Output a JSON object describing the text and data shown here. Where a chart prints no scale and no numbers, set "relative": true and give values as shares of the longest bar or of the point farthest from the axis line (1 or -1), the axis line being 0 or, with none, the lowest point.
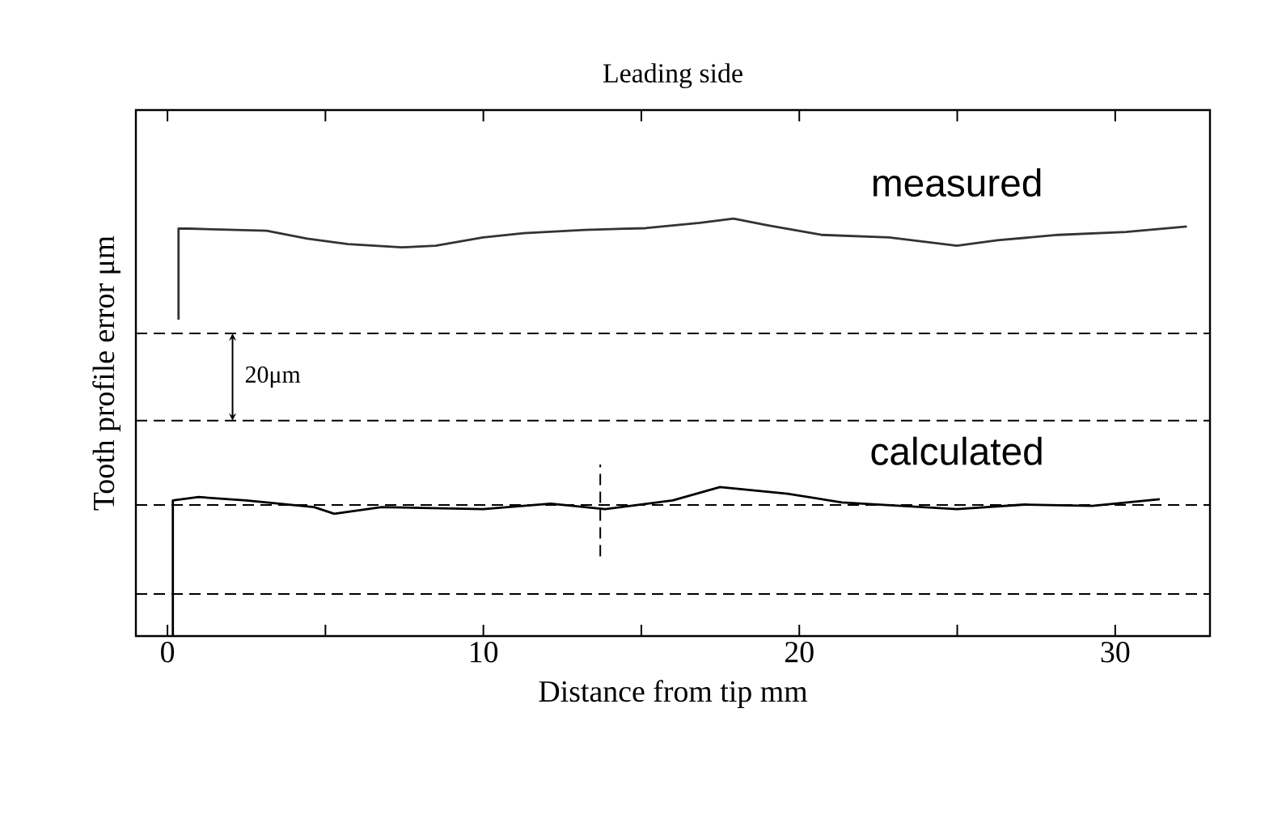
{
  "chart_data": {
    "type": "line",
    "title": "Leading side",
    "xlabel": "Distance from tip  mm",
    "ylabel": "Tooth profile error  μm",
    "relative": true,
    "tick_labels": "x",
    "marker": "none",
    "line_style": "solid",
    "xlim": [
      -1,
      33
    ],
    "xticks": [
      0,
      {
        "value": 5,
        "label": null
      },
      10,
      {
        "value": 15,
        "label": null
      },
      20,
      {
        "value": 25,
        "label": null
      },
      30
    ],
    "series": [
      {
        "name": "measured",
        "color": "#333333",
        "x": [
          0.35,
          0.35,
          0.67,
          3.14,
          4.42,
          5.71,
          7.42,
          8.49,
          9.99,
          11.28,
          13.2,
          15.13,
          16.85,
          17.92,
          18.99,
          20.7,
          22.84,
          24.99,
          26.27,
          28.2,
          30.34,
          32.27
        ],
        "values": [
          0.758,
          0.976,
          0.976,
          0.971,
          0.952,
          0.939,
          0.931,
          0.935,
          0.955,
          0.965,
          0.973,
          0.977,
          0.99,
          1.0,
          0.984,
          0.961,
          0.955,
          0.935,
          0.948,
          0.961,
          0.968,
          0.981
        ]
      },
      {
        "name": "calculated",
        "color": "#000000",
        "x": [
          0.17,
          0.17,
          0.99,
          2.49,
          4.64,
          5.28,
          6.78,
          9.99,
          12.13,
          13.85,
          15.99,
          17.49,
          19.63,
          21.35,
          24.99,
          27.13,
          29.27,
          31.41
        ],
        "values": [
          0,
          0.325,
          0.333,
          0.325,
          0.309,
          0.293,
          0.309,
          0.304,
          0.317,
          0.304,
          0.325,
          0.357,
          0.341,
          0.32,
          0.304,
          0.315,
          0.312,
          0.328
        ]
      }
    ],
    "ref_lines": [
      {
        "axis": "y",
        "value": 0.725,
        "line_style": "dashed"
      },
      {
        "axis": "y",
        "value": 0.516,
        "line_style": "dashed"
      },
      {
        "axis": "y",
        "value": 0.314,
        "line_style": "dashed"
      },
      {
        "axis": "y",
        "value": 0.101,
        "line_style": "dashed"
      },
      {
        "axis": "x",
        "value": 13.7,
        "line_style": "dashed"
      }
    ],
    "annotations": [
      "20μm"
    ]
  }
}
